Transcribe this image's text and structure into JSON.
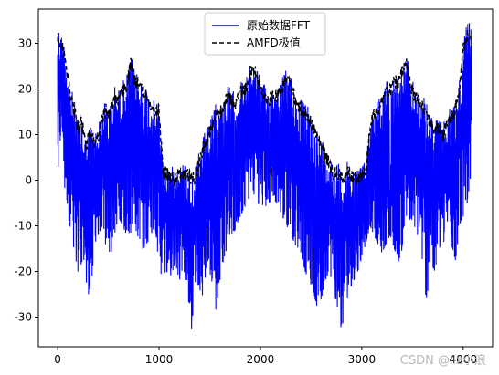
{
  "chart_data": {
    "type": "line",
    "title": "",
    "xlabel": "",
    "ylabel": "",
    "xlim": [
      -190,
      4290
    ],
    "ylim": [
      -36.5,
      37.5
    ],
    "x_ticks": [
      0,
      1000,
      2000,
      3000,
      4000
    ],
    "y_ticks": [
      -30,
      -20,
      -10,
      0,
      10,
      20,
      30
    ],
    "grid": false,
    "legend_position": "top-center",
    "series": [
      {
        "name": "原始数据FFT",
        "style": "solid",
        "color": "#0000ff",
        "description": "dense oscillating FFT magnitude (dB), symmetric about x≈2048",
        "x": [
          0,
          40,
          80,
          120,
          160,
          200,
          240,
          280,
          320,
          360,
          400,
          440,
          480,
          520,
          560,
          600,
          640,
          680,
          720,
          760,
          800,
          840,
          880,
          920,
          960,
          1000,
          1040,
          1080,
          1120,
          1160,
          1200,
          1240,
          1280,
          1320,
          1360,
          1400,
          1440,
          1480,
          1520,
          1560,
          1600,
          1640,
          1680,
          1720,
          1760,
          1800,
          1840,
          1880,
          1920,
          1960,
          2000,
          2040,
          2080,
          2120,
          2160,
          2200,
          2240,
          2280,
          2320,
          2360,
          2400,
          2440,
          2480,
          2520,
          2560,
          2600,
          2640,
          2680,
          2720,
          2760,
          2800,
          2840,
          2880,
          2920,
          2960,
          3000,
          3040,
          3080,
          3120,
          3160,
          3200,
          3240,
          3280,
          3320,
          3360,
          3400,
          3440,
          3480,
          3520,
          3560,
          3600,
          3640,
          3680,
          3720,
          3760,
          3800,
          3840,
          3880,
          3920,
          3960,
          4000,
          4040,
          4080
        ],
        "upper": [
          35,
          32,
          30,
          22,
          18,
          14,
          15,
          10,
          13,
          11,
          12,
          16,
          18,
          17,
          21,
          20,
          22,
          23,
          28,
          24,
          24,
          22,
          21,
          19,
          17,
          18,
          4,
          4,
          3,
          3,
          4,
          4,
          4,
          3,
          3,
          7,
          10,
          12,
          14,
          18,
          17,
          19,
          21,
          20,
          19,
          22,
          22,
          24,
          27,
          26,
          22,
          21,
          20,
          21,
          21,
          22,
          24,
          25,
          22,
          19,
          18,
          17,
          16,
          14,
          12,
          10,
          8,
          6,
          4,
          4,
          3,
          4,
          4,
          3,
          3,
          4,
          4,
          14,
          17,
          18,
          20,
          22,
          22,
          24,
          24,
          26,
          28,
          23,
          21,
          20,
          19,
          17,
          15,
          13,
          14,
          12,
          15,
          16,
          18,
          22,
          32,
          35,
          34
        ],
        "lower": [
          2,
          8,
          -5,
          -10,
          -15,
          -20,
          -18,
          -22,
          -27,
          -15,
          -12,
          -10,
          -15,
          -18,
          -12,
          -8,
          -10,
          -12,
          -14,
          -10,
          -13,
          -15,
          -14,
          -12,
          -10,
          -19,
          -23,
          -20,
          -21,
          -18,
          -22,
          -20,
          -24,
          -33,
          -22,
          -28,
          -24,
          -20,
          -22,
          -29,
          -22,
          -17,
          -15,
          -13,
          -10,
          -8,
          -6,
          -5,
          -4,
          -2,
          -8,
          -6,
          -5,
          -4,
          -5,
          -7,
          -9,
          -11,
          -13,
          -15,
          -17,
          -20,
          -22,
          -24,
          -28,
          -26,
          -22,
          -20,
          -24,
          -28,
          -33,
          -28,
          -24,
          -22,
          -20,
          -18,
          -14,
          -10,
          -12,
          -14,
          -16,
          -14,
          -12,
          -15,
          -18,
          -15,
          -12,
          -8,
          -10,
          -14,
          -20,
          -27,
          -18,
          -20,
          -15,
          -14,
          -12,
          -15,
          -20,
          -10,
          -8,
          -5,
          2
        ]
      },
      {
        "name": "AMFD极值",
        "style": "dashed",
        "color": "#000000",
        "description": "upper envelope of local maxima",
        "x": [
          0,
          40,
          80,
          120,
          160,
          200,
          240,
          280,
          320,
          360,
          400,
          440,
          480,
          520,
          560,
          600,
          640,
          680,
          720,
          760,
          800,
          840,
          880,
          920,
          960,
          1000,
          1040,
          1080,
          1120,
          1160,
          1200,
          1240,
          1280,
          1320,
          1360,
          1400,
          1440,
          1480,
          1520,
          1560,
          1600,
          1640,
          1680,
          1720,
          1760,
          1800,
          1840,
          1880,
          1920,
          1960,
          2000,
          2040,
          2080,
          2120,
          2160,
          2200,
          2240,
          2280,
          2320,
          2360,
          2400,
          2440,
          2480,
          2520,
          2560,
          2600,
          2640,
          2680,
          2720,
          2760,
          2800,
          2840,
          2880,
          2920,
          2960,
          3000,
          3040,
          3080,
          3120,
          3160,
          3200,
          3240,
          3280,
          3320,
          3360,
          3400,
          3440,
          3480,
          3520,
          3560,
          3600,
          3640,
          3680,
          3720,
          3760,
          3800,
          3840,
          3880,
          3920,
          3960,
          4000,
          4040,
          4080
        ],
        "values": [
          33,
          31,
          28,
          21,
          17,
          13,
          14,
          9,
          12,
          10,
          11,
          15,
          17,
          16,
          20,
          19,
          21,
          22,
          27,
          23,
          23,
          21,
          20,
          18,
          16,
          17,
          3,
          3,
          2,
          2,
          3,
          3,
          3,
          2,
          2,
          6,
          9,
          11,
          13,
          17,
          16,
          18,
          20,
          19,
          18,
          21,
          21,
          23,
          26,
          25,
          21,
          20,
          19,
          20,
          20,
          21,
          23,
          24,
          21,
          18,
          17,
          16,
          15,
          13,
          11,
          9,
          7,
          5,
          3,
          3,
          2,
          3,
          3,
          2,
          2,
          3,
          3,
          13,
          16,
          17,
          19,
          21,
          21,
          23,
          23,
          25,
          27,
          22,
          20,
          19,
          18,
          16,
          14,
          12,
          13,
          11,
          14,
          15,
          17,
          21,
          31,
          33,
          32
        ]
      }
    ],
    "legend": {
      "entries": [
        "原始数据FFT",
        "AMFD极值"
      ]
    },
    "watermark": "CSDN @llz小浪"
  }
}
